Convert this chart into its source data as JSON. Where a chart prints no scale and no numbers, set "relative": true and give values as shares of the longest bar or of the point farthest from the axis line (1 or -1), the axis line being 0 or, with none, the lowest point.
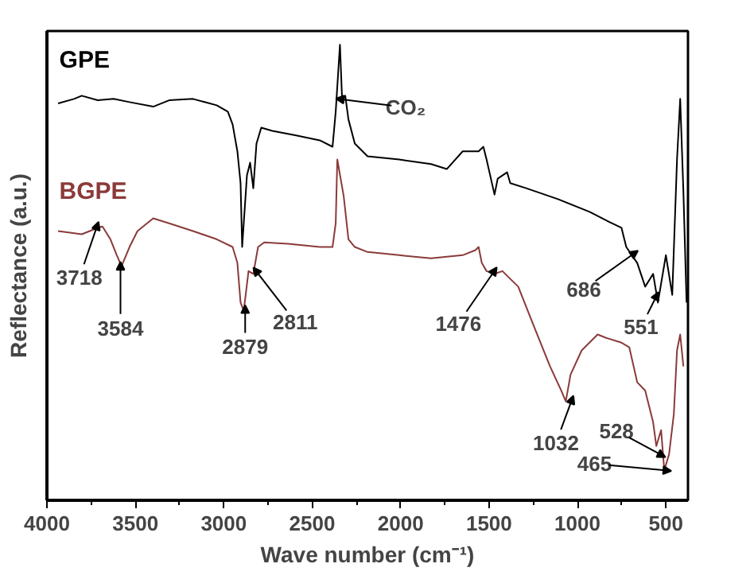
{
  "chart_data": {
    "type": "line",
    "relative": true,
    "xlabel": "Wave number (cm⁻¹)",
    "ylabel": "Reflectance (a.u.)",
    "xlim": [
      4000,
      375
    ],
    "xticks": [
      4000,
      {
        "value": 3750,
        "label": null
      },
      3500,
      {
        "value": 3250,
        "label": null
      },
      3000,
      {
        "value": 2750,
        "label": null
      },
      2500,
      {
        "value": 2250,
        "label": null
      },
      2000,
      {
        "value": 1750,
        "label": null
      },
      1500,
      {
        "value": 1250,
        "label": null
      },
      1000,
      {
        "value": 750,
        "label": null
      },
      500
    ],
    "tick_labels": "x",
    "grid": false,
    "marker": "none",
    "line_style": "solid",
    "series": [
      {
        "name": "GPE",
        "color": "#000000",
        "x": [
          3937,
          3847,
          3803,
          3713,
          3623,
          3533,
          3399,
          3309,
          3174,
          3040,
          2977,
          2950,
          2923,
          2905,
          2896,
          2869,
          2851,
          2833,
          2815,
          2788,
          2726,
          2591,
          2457,
          2385,
          2367,
          2343,
          2331,
          2313,
          2295,
          2259,
          2187,
          2008,
          1828,
          1739,
          1649,
          1559,
          1532,
          1514,
          1469,
          1451,
          1398,
          1380,
          1290,
          1110,
          931,
          841,
          751,
          724,
          662,
          617,
          572,
          545,
          500,
          464,
          437,
          419,
          401,
          383
        ],
        "values": [
          0.871,
          0.881,
          0.888,
          0.878,
          0.881,
          0.874,
          0.864,
          0.878,
          0.881,
          0.867,
          0.853,
          0.825,
          0.766,
          0.696,
          0.556,
          0.713,
          0.741,
          0.685,
          0.783,
          0.818,
          0.811,
          0.801,
          0.79,
          0.776,
          0.853,
          1.0,
          0.881,
          0.888,
          0.836,
          0.783,
          0.755,
          0.748,
          0.738,
          0.727,
          0.766,
          0.766,
          0.776,
          0.748,
          0.671,
          0.706,
          0.72,
          0.696,
          0.685,
          0.661,
          0.633,
          0.615,
          0.598,
          0.556,
          0.521,
          0.469,
          0.497,
          0.434,
          0.538,
          0.451,
          0.748,
          0.881,
          0.678,
          0.434
        ]
      },
      {
        "name": "BGPE",
        "color": "#8b3a3a",
        "x": [
          3937,
          3803,
          3713,
          3686,
          3641,
          3605,
          3578,
          3533,
          3488,
          3399,
          3309,
          3174,
          3040,
          2950,
          2923,
          2905,
          2887,
          2860,
          2833,
          2806,
          2771,
          2636,
          2457,
          2385,
          2367,
          2358,
          2322,
          2295,
          2259,
          2187,
          2008,
          1828,
          1649,
          1577,
          1559,
          1541,
          1514,
          1469,
          1424,
          1380,
          1335,
          1245,
          1155,
          1092,
          1066,
          1039,
          976,
          886,
          841,
          751,
          707,
          662,
          617,
          572,
          554,
          527,
          509,
          482,
          455,
          437,
          419,
          401
        ],
        "values": [
          0.591,
          0.584,
          0.598,
          0.601,
          0.573,
          0.538,
          0.514,
          0.556,
          0.591,
          0.619,
          0.608,
          0.591,
          0.573,
          0.556,
          0.521,
          0.434,
          0.416,
          0.503,
          0.497,
          0.556,
          0.566,
          0.563,
          0.556,
          0.556,
          0.608,
          0.748,
          0.668,
          0.573,
          0.556,
          0.545,
          0.538,
          0.531,
          0.538,
          0.549,
          0.556,
          0.521,
          0.503,
          0.497,
          0.503,
          0.486,
          0.469,
          0.381,
          0.294,
          0.241,
          0.217,
          0.276,
          0.329,
          0.364,
          0.357,
          0.346,
          0.336,
          0.259,
          0.241,
          0.171,
          0.119,
          0.154,
          0.066,
          0.101,
          0.189,
          0.329,
          0.364,
          0.294
        ]
      }
    ],
    "annotations": [
      {
        "text": "3718",
        "x": 3718,
        "y": 0.6
      },
      {
        "text": "3584",
        "x": 3584,
        "y": 0.51
      },
      {
        "text": "2879",
        "x": 2879,
        "y": 0.42
      },
      {
        "text": "2811",
        "x": 2811,
        "y": 0.5
      },
      {
        "text": "1476",
        "x": 1476,
        "y": 0.5
      },
      {
        "text": "1032",
        "x": 1032,
        "y": 0.22
      },
      {
        "text": "528",
        "x": 528,
        "y": 0.1
      },
      {
        "text": "465",
        "x": 509,
        "y": 0.066
      },
      {
        "text": "686",
        "x": 686,
        "y": 0.54
      },
      {
        "text": "551",
        "x": 551,
        "y": 0.45
      },
      {
        "text": "CO₂",
        "x": 2330,
        "y": 0.88
      }
    ]
  }
}
